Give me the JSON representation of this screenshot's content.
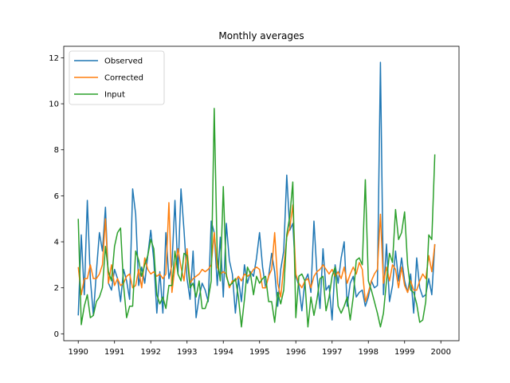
{
  "chart_data": {
    "type": "line",
    "title": "Monthly averages",
    "xlabel": "",
    "ylabel": "",
    "x_start": "1990-01",
    "x_step": "1 month",
    "xlim": [
      1989.6,
      2000.5
    ],
    "ylim": [
      -0.3,
      12.5
    ],
    "x_ticks": [
      1990,
      1991,
      1992,
      1993,
      1994,
      1995,
      1996,
      1997,
      1998,
      1999,
      2000
    ],
    "y_ticks": [
      0,
      2,
      4,
      6,
      8,
      10,
      12
    ],
    "grid": false,
    "legend_position": "top-left",
    "series": [
      {
        "name": "Observed",
        "color": "#1f77b4",
        "values": [
          0.8,
          4.3,
          1.7,
          5.8,
          2.4,
          0.8,
          2.7,
          4.4,
          3.6,
          5.5,
          2.2,
          1.9,
          2.8,
          2.4,
          1.4,
          2.8,
          2.3,
          1.5,
          6.3,
          5.2,
          2.1,
          2.9,
          2.2,
          3.4,
          4.5,
          3.2,
          0.9,
          2.7,
          0.9,
          4.4,
          2.4,
          3.0,
          5.8,
          2.6,
          6.3,
          4.5,
          2.4,
          1.5,
          3.6,
          0.7,
          1.6,
          2.2,
          1.9,
          1.4,
          4.9,
          4.4,
          2.1,
          4.2,
          1.6,
          4.8,
          3.2,
          2.6,
          0.9,
          2.4,
          1.4,
          3.0,
          2.2,
          2.7,
          2.5,
          3.3,
          4.4,
          2.9,
          2.0,
          2.5,
          3.5,
          2.7,
          1.2,
          2.8,
          3.6,
          6.9,
          4.5,
          4.8,
          2.5,
          2.1,
          1.0,
          2.3,
          2.6,
          1.8,
          4.9,
          2.6,
          1.1,
          3.7,
          1.9,
          2.1,
          0.6,
          3.0,
          2.2,
          3.3,
          4.0,
          1.2,
          2.2,
          2.5,
          1.6,
          1.8,
          1.9,
          1.2,
          1.6,
          2.3,
          2.0,
          2.1,
          11.8,
          1.7,
          3.9,
          1.4,
          2.1,
          3.6,
          2.3,
          3.3,
          2.3,
          1.8,
          2.6,
          0.9,
          3.3,
          2.0,
          1.6,
          1.7,
          2.4,
          1.7,
          3.9
        ]
      },
      {
        "name": "Corrected",
        "color": "#ff7f0e",
        "values": [
          2.9,
          1.7,
          2.4,
          2.4,
          3.0,
          2.4,
          2.4,
          2.6,
          3.0,
          5.0,
          2.2,
          3.0,
          2.1,
          2.4,
          2.1,
          2.2,
          2.5,
          2.6,
          2.0,
          2.1,
          2.8,
          2.0,
          3.3,
          2.8,
          2.6,
          2.7,
          2.5,
          2.6,
          2.4,
          2.6,
          5.7,
          1.8,
          2.9,
          3.7,
          2.9,
          2.3,
          3.7,
          2.2,
          2.4,
          2.5,
          2.6,
          2.8,
          2.7,
          2.8,
          3.0,
          4.4,
          2.9,
          2.6,
          2.7,
          2.6,
          2.0,
          2.3,
          2.3,
          2.5,
          2.3,
          2.6,
          2.5,
          2.6,
          2.8,
          2.9,
          2.8,
          2.0,
          2.0,
          2.5,
          2.8,
          4.4,
          2.2,
          1.6,
          2.9,
          4.2,
          4.6,
          5.6,
          2.6,
          2.2,
          2.0,
          2.3,
          2.4,
          2.0,
          2.5,
          2.7,
          2.8,
          3.0,
          2.8,
          2.6,
          2.8,
          2.5,
          2.7,
          2.4,
          2.9,
          2.2,
          2.6,
          2.9,
          2.6,
          3.1,
          2.8,
          1.4,
          1.8,
          2.3,
          2.6,
          2.8,
          5.2,
          2.2,
          2.9,
          2.3,
          3.0,
          2.8,
          2.0,
          2.9,
          2.1,
          1.8,
          2.3,
          1.9,
          1.9,
          2.3,
          2.6,
          2.4,
          3.4,
          2.7,
          3.9
        ]
      },
      {
        "name": "Input",
        "color": "#2ca02c",
        "values": [
          5.0,
          0.4,
          1.2,
          1.7,
          0.7,
          0.8,
          1.4,
          1.6,
          2.0,
          3.8,
          2.7,
          2.3,
          3.8,
          4.4,
          4.6,
          2.1,
          0.7,
          1.2,
          1.2,
          3.6,
          3.2,
          2.5,
          3.0,
          3.4,
          4.1,
          3.7,
          1.7,
          1.3,
          1.6,
          1.1,
          2.1,
          2.1,
          3.6,
          2.6,
          2.3,
          3.5,
          3.4,
          2.0,
          2.2,
          1.6,
          2.3,
          1.1,
          1.1,
          1.5,
          2.3,
          9.8,
          3.3,
          2.3,
          6.4,
          2.5,
          2.1,
          2.2,
          2.4,
          1.6,
          0.3,
          1.5,
          2.9,
          2.6,
          1.7,
          2.5,
          2.2,
          2.4,
          2.5,
          1.4,
          1.4,
          0.5,
          1.8,
          1.3,
          1.9,
          4.3,
          5.1,
          6.6,
          0.7,
          2.5,
          2.6,
          2.3,
          0.3,
          1.6,
          0.8,
          1.5,
          2.4,
          2.5,
          1.0,
          1.6,
          2.5,
          2.9,
          1.2,
          0.9,
          1.2,
          1.6,
          0.6,
          1.6,
          3.2,
          3.3,
          3.0,
          6.7,
          2.3,
          1.9,
          1.4,
          0.9,
          0.3,
          0.9,
          2.3,
          3.5,
          3.1,
          5.4,
          4.1,
          4.4,
          5.3,
          3.0,
          1.9,
          1.8,
          1.3,
          0.5,
          0.6,
          1.4,
          4.3,
          4.1,
          7.8
        ]
      }
    ]
  }
}
